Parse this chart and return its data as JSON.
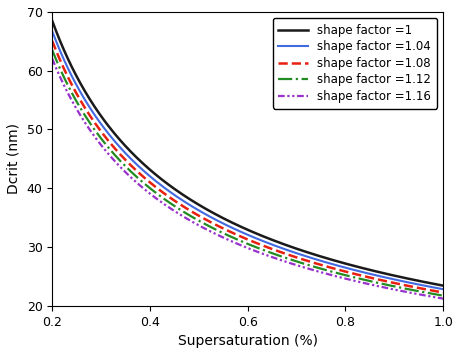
{
  "title": "",
  "xlabel": "Supersaturation (%)",
  "ylabel": "Dcrit (nm)",
  "xlim": [
    0.2,
    1.0
  ],
  "ylim": [
    20,
    70
  ],
  "xticks": [
    0.2,
    0.4,
    0.6,
    0.8,
    1.0
  ],
  "yticks": [
    20,
    30,
    40,
    50,
    60,
    70
  ],
  "series": [
    {
      "label": "shape factor =1",
      "shape_factor": 1.0,
      "color": "#1a1a1a",
      "linestyle": "solid",
      "linewidth": 1.8
    },
    {
      "label": "shape factor =1.04",
      "shape_factor": 1.04,
      "color": "#4169e1",
      "linestyle": "solid",
      "linewidth": 1.5
    },
    {
      "label": "shape factor =1.08",
      "shape_factor": 1.08,
      "color": "#e82010",
      "linestyle": "dashed",
      "linewidth": 1.8
    },
    {
      "label": "shape factor =1.12",
      "shape_factor": 1.12,
      "color": "#228b22",
      "linestyle": "dashdot",
      "linewidth": 1.6
    },
    {
      "label": "shape factor =1.16",
      "shape_factor": 1.16,
      "color": "#9932cc",
      "linestyle": "dashdotdot",
      "linewidth": 1.6
    }
  ],
  "reference_D0": 68.5,
  "reference_S0": 0.2,
  "legend_loc": "upper right",
  "legend_fontsize": 8.5,
  "axis_fontsize": 10,
  "tick_fontsize": 9,
  "figsize": [
    4.6,
    3.55
  ],
  "dpi": 100
}
